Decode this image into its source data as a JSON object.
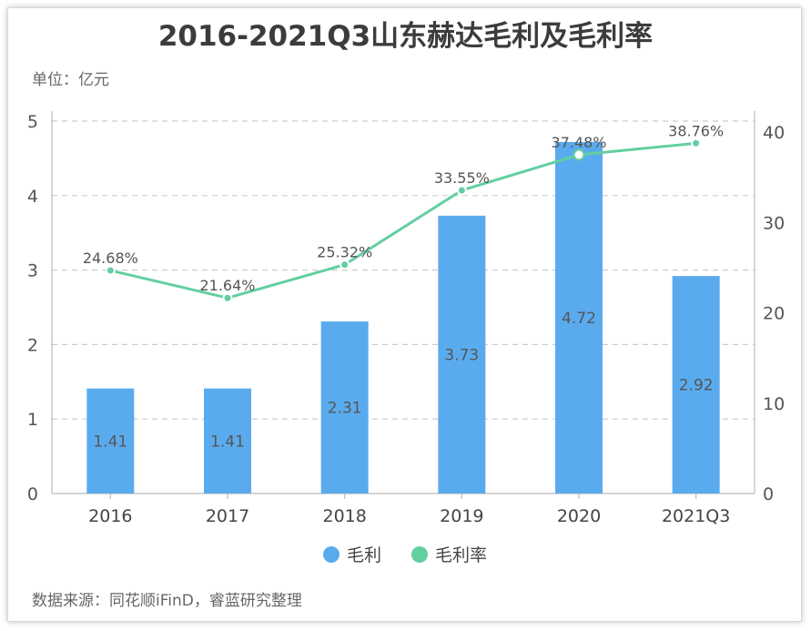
{
  "title": "2016-2021Q3山东赫达毛利及毛利率",
  "unit_label": "单位：亿元",
  "source_label": "数据来源：同花顺iFinD，睿蓝研究整理",
  "colors": {
    "bar": "#5aabee",
    "line": "#62cfa0",
    "grid": "#cccccc"
  },
  "chart_data": {
    "type": "bar",
    "categories": [
      "2016",
      "2017",
      "2018",
      "2019",
      "2020",
      "2021Q3"
    ],
    "series": [
      {
        "name": "毛利",
        "type": "bar",
        "axis": "left",
        "values": [
          1.41,
          1.41,
          2.31,
          3.73,
          4.72,
          2.92
        ],
        "labels": [
          "1.41",
          "1.41",
          "2.31",
          "3.73",
          "4.72",
          "2.92"
        ]
      },
      {
        "name": "毛利率",
        "type": "line",
        "axis": "right",
        "values": [
          24.68,
          21.64,
          25.32,
          33.55,
          37.48,
          38.76
        ],
        "labels": [
          "24.68%",
          "21.64%",
          "25.32%",
          "33.55%",
          "37.48%",
          "38.76%"
        ]
      }
    ],
    "y_left": {
      "lim": [
        0,
        5
      ],
      "ticks": [
        "0",
        "1",
        "2",
        "3",
        "4",
        "5"
      ]
    },
    "y_right": {
      "lim": [
        0,
        42.5
      ],
      "ticks": [
        "0",
        "10",
        "20",
        "30",
        "40"
      ]
    },
    "grid": true,
    "legend": "bottom"
  }
}
